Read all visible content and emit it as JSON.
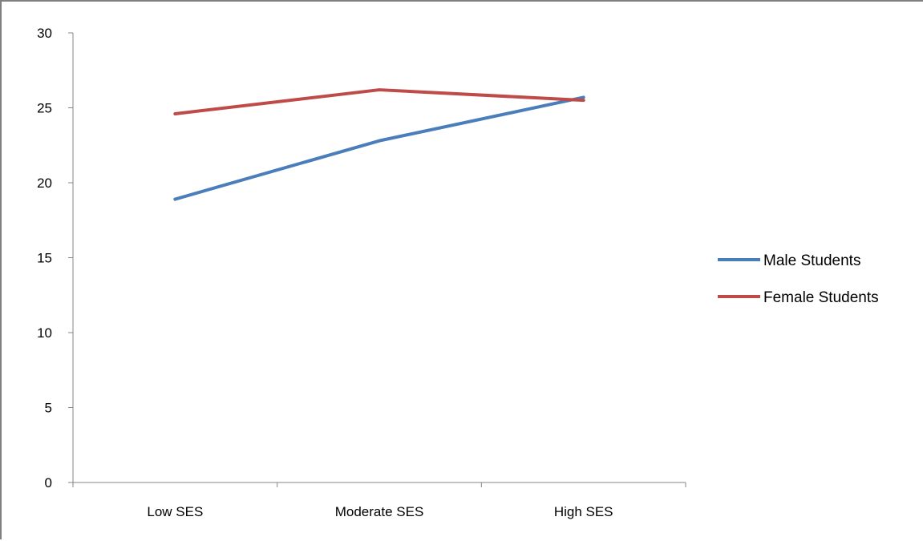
{
  "chart_data": {
    "type": "line",
    "title": "",
    "xlabel": "",
    "ylabel": "",
    "categories": [
      "Low SES",
      "Moderate SES",
      "High SES"
    ],
    "ylim": [
      0,
      30
    ],
    "yticks": [
      0,
      5,
      10,
      15,
      20,
      25,
      30
    ],
    "grid": false,
    "legend_position": "right",
    "series": [
      {
        "name": "Male Students",
        "color": "#4a7ebb",
        "values": [
          18.9,
          22.8,
          25.7
        ]
      },
      {
        "name": "Female Students",
        "color": "#be4b48",
        "values": [
          24.6,
          26.2,
          25.5
        ]
      }
    ]
  }
}
